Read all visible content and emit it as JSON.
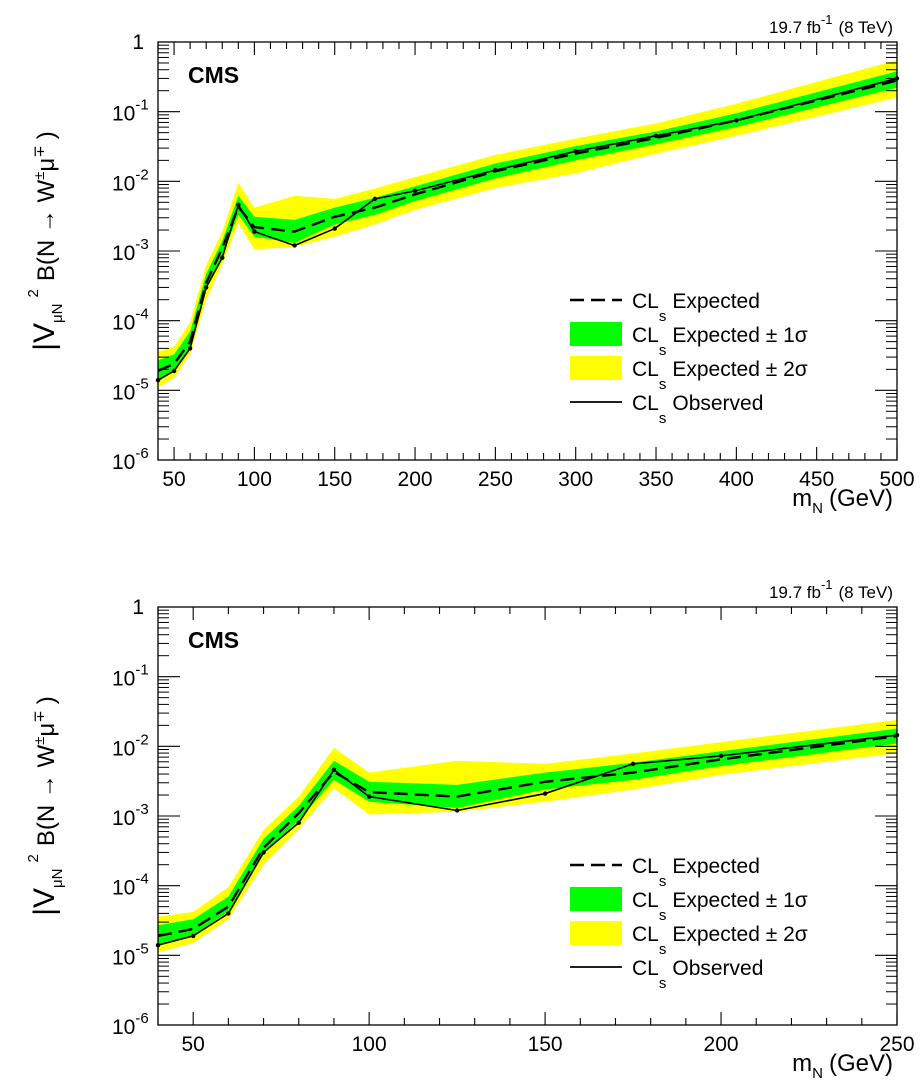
{
  "chart_data": [
    {
      "type": "line",
      "experiment": "CMS",
      "lumi_label": {
        "value": "19.7 fb",
        "sup": "-1",
        "energy": "(8 TeV)"
      },
      "xlabel": {
        "main": "m",
        "sub": "N",
        "unit": "(GeV)"
      },
      "ylabel": {
        "main": "|V",
        "sub": "μN",
        "sup": "2",
        "rest": "B(N → W",
        "pm": "±",
        "mu": "μ",
        "mp": "∓",
        "close": ")"
      },
      "xlim": [
        40,
        500
      ],
      "ylim": [
        1e-06,
        1
      ],
      "yscale": "log",
      "xticks": [
        50,
        100,
        150,
        200,
        250,
        300,
        350,
        400,
        450,
        500
      ],
      "xtick_labels": [
        "50",
        "100",
        "150",
        "200",
        "250",
        "300",
        "350",
        "400",
        "450",
        "500"
      ],
      "yticks": [
        1,
        0.1,
        0.01,
        0.001,
        0.0001,
        1e-05,
        1e-06
      ],
      "ytick_labels": [
        {
          "base": "1",
          "exp": ""
        },
        {
          "base": "10",
          "exp": "-1"
        },
        {
          "base": "10",
          "exp": "-2"
        },
        {
          "base": "10",
          "exp": "-3"
        },
        {
          "base": "10",
          "exp": "-4"
        },
        {
          "base": "10",
          "exp": "-5"
        },
        {
          "base": "10",
          "exp": "-6"
        }
      ],
      "legend_position": "bottom-right",
      "legend": [
        {
          "key": "expected",
          "main": "CL",
          "sub": "s",
          "rest": "Expected"
        },
        {
          "key": "band1",
          "main": "CL",
          "sub": "s",
          "rest": "Expected  ± 1σ"
        },
        {
          "key": "band2",
          "main": "CL",
          "sub": "s",
          "rest": "Expected  ± 2σ"
        },
        {
          "key": "observed",
          "main": "CL",
          "sub": "s",
          "rest": "Observed"
        }
      ],
      "colors": {
        "band1": "#00ff00",
        "band2": "#ffff00",
        "line": "#000000"
      },
      "x": [
        40,
        50,
        60,
        70,
        80,
        90,
        100,
        125,
        150,
        175,
        200,
        250,
        300,
        350,
        400,
        500
      ],
      "observed": [
        1.4e-05,
        1.9e-05,
        4e-05,
        0.0003,
        0.0008,
        0.0046,
        0.0019,
        0.0012,
        0.0021,
        0.0056,
        0.0073,
        0.0145,
        0.027,
        0.045,
        0.075,
        0.3
      ],
      "expected": [
        1.9e-05,
        2.4e-05,
        5e-05,
        0.00035,
        0.0011,
        0.0043,
        0.0022,
        0.0019,
        0.0031,
        0.0042,
        0.0065,
        0.014,
        0.025,
        0.042,
        0.075,
        0.28
      ],
      "band1_low": [
        1.4e-05,
        1.9e-05,
        4.3e-05,
        0.00029,
        0.00087,
        0.0033,
        0.0016,
        0.0013,
        0.0024,
        0.0033,
        0.0052,
        0.011,
        0.02,
        0.034,
        0.06,
        0.22
      ],
      "band1_high": [
        2.7e-05,
        3.3e-05,
        7e-05,
        0.00047,
        0.0014,
        0.0062,
        0.0031,
        0.0028,
        0.0042,
        0.0058,
        0.0085,
        0.018,
        0.032,
        0.052,
        0.095,
        0.38
      ],
      "band2_low": [
        1.1e-05,
        1.5e-05,
        3.3e-05,
        0.0002,
        0.00065,
        0.0025,
        0.00105,
        0.00115,
        0.0016,
        0.0024,
        0.0039,
        0.008,
        0.013,
        0.025,
        0.045,
        0.16
      ],
      "band2_high": [
        3.6e-05,
        4.2e-05,
        9.5e-05,
        0.00063,
        0.0019,
        0.0095,
        0.0042,
        0.0062,
        0.0056,
        0.0079,
        0.0115,
        0.024,
        0.041,
        0.068,
        0.13,
        0.55
      ]
    },
    {
      "type": "line",
      "experiment": "CMS",
      "lumi_label": {
        "value": "19.7 fb",
        "sup": "-1",
        "energy": "(8 TeV)"
      },
      "xlabel": {
        "main": "m",
        "sub": "N",
        "unit": "(GeV)"
      },
      "ylabel": {
        "main": "|V",
        "sub": "μN",
        "sup": "2",
        "rest": "B(N → W",
        "pm": "±",
        "mu": "μ",
        "mp": "∓",
        "close": ")"
      },
      "xlim": [
        40,
        250
      ],
      "ylim": [
        1e-06,
        1
      ],
      "yscale": "log",
      "xticks": [
        50,
        100,
        150,
        200,
        250
      ],
      "xtick_labels": [
        "50",
        "100",
        "150",
        "200",
        "250"
      ],
      "yticks": [
        1,
        0.1,
        0.01,
        0.001,
        0.0001,
        1e-05,
        1e-06
      ],
      "ytick_labels": [
        {
          "base": "1",
          "exp": ""
        },
        {
          "base": "10",
          "exp": "-1"
        },
        {
          "base": "10",
          "exp": "-2"
        },
        {
          "base": "10",
          "exp": "-3"
        },
        {
          "base": "10",
          "exp": "-4"
        },
        {
          "base": "10",
          "exp": "-5"
        },
        {
          "base": "10",
          "exp": "-6"
        }
      ],
      "legend_position": "bottom-right",
      "legend": [
        {
          "key": "expected",
          "main": "CL",
          "sub": "s",
          "rest": "Expected"
        },
        {
          "key": "band1",
          "main": "CL",
          "sub": "s",
          "rest": "Expected  ± 1σ"
        },
        {
          "key": "band2",
          "main": "CL",
          "sub": "s",
          "rest": "Expected  ± 2σ"
        },
        {
          "key": "observed",
          "main": "CL",
          "sub": "s",
          "rest": "Observed"
        }
      ],
      "colors": {
        "band1": "#00ff00",
        "band2": "#ffff00",
        "line": "#000000"
      },
      "x": [
        40,
        50,
        60,
        70,
        80,
        90,
        100,
        125,
        150,
        175,
        200,
        250
      ],
      "observed": [
        1.4e-05,
        1.9e-05,
        4e-05,
        0.0003,
        0.0008,
        0.0046,
        0.0019,
        0.0012,
        0.0021,
        0.0056,
        0.0073,
        0.0145
      ],
      "expected": [
        1.9e-05,
        2.4e-05,
        5e-05,
        0.00035,
        0.0011,
        0.0043,
        0.0022,
        0.0019,
        0.0031,
        0.0042,
        0.0065,
        0.014
      ],
      "band1_low": [
        1.4e-05,
        1.9e-05,
        4.3e-05,
        0.00029,
        0.00087,
        0.0033,
        0.0016,
        0.0013,
        0.0024,
        0.0033,
        0.0052,
        0.011
      ],
      "band1_high": [
        2.7e-05,
        3.3e-05,
        7e-05,
        0.00047,
        0.0014,
        0.0062,
        0.0031,
        0.0028,
        0.0042,
        0.0058,
        0.0085,
        0.018
      ],
      "band2_low": [
        1.1e-05,
        1.5e-05,
        3.3e-05,
        0.0002,
        0.00065,
        0.0025,
        0.00105,
        0.00115,
        0.0016,
        0.0024,
        0.0039,
        0.008
      ],
      "band2_high": [
        3.6e-05,
        4.2e-05,
        9.5e-05,
        0.00063,
        0.0019,
        0.0095,
        0.0042,
        0.0062,
        0.0056,
        0.0079,
        0.0115,
        0.024
      ]
    }
  ]
}
